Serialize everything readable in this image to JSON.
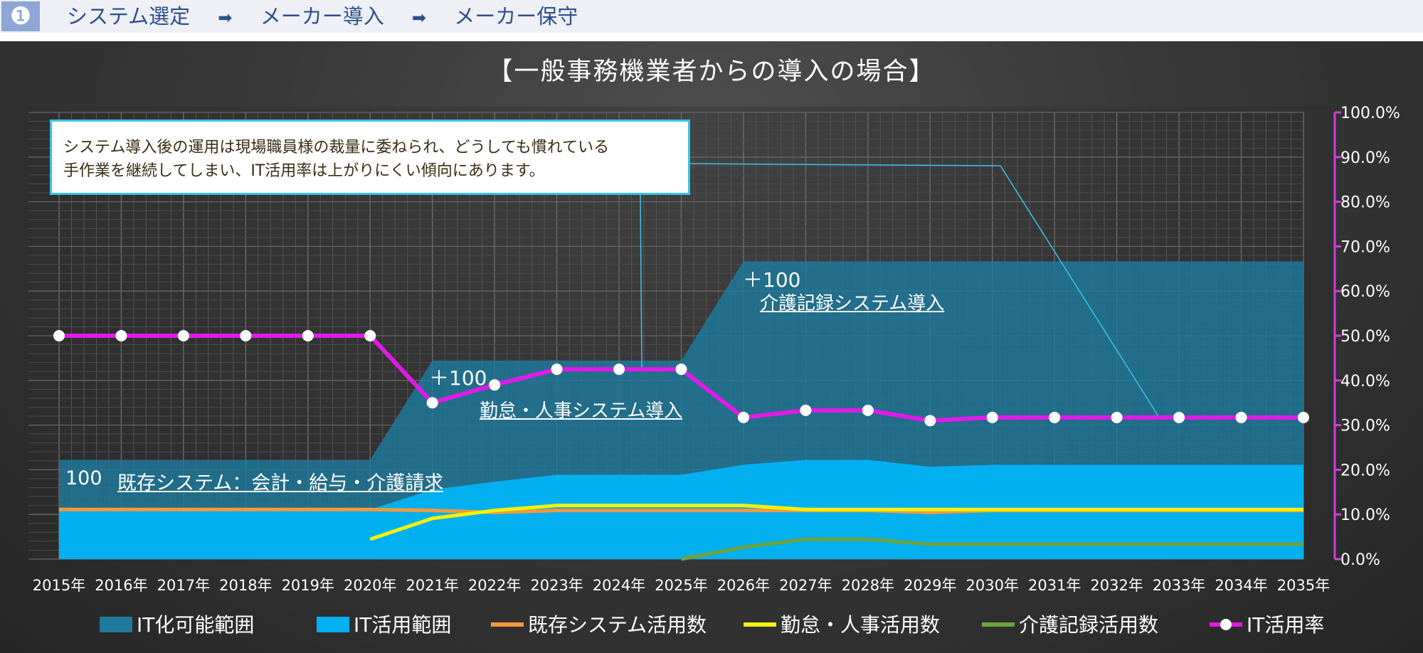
{
  "header": {
    "step_number": "❶",
    "steps": [
      "システム選定",
      "メーカー導入",
      "メーカー保守"
    ],
    "arrow": "➡"
  },
  "colors": {
    "it_possible_area": "#1f7a9c",
    "it_usage_area": "#03b0ef",
    "existing_line": "#f29a3a",
    "attendance_line": "#f3f20c",
    "care_line": "#6ea33e",
    "it_rate_line": "#e01ae8",
    "right_axis": "#d13fd7",
    "callout_border": "#39c4ec"
  },
  "callout": {
    "line1": "システム導入後の運用は現場職員様の裁量に委ねられ、どうしても慣れている",
    "line2": "手作業を継続してしまい、IT活用率は上がりにくい傾向にあります。"
  },
  "annotations": {
    "existing_count": "100",
    "existing_label": "既存システム：会計・給与・介護請求",
    "attendance_plus": "＋100",
    "attendance_label": "勤怠・人事システム導入",
    "care_plus": "＋100",
    "care_label": "介護記録システム導入"
  },
  "chart_data": {
    "type": "area",
    "title": "【一般事務機業者からの導入の場合】",
    "x": [
      "2015年",
      "2016年",
      "2017年",
      "2018年",
      "2019年",
      "2020年",
      "2021年",
      "2022年",
      "2023年",
      "2024年",
      "2025年",
      "2026年",
      "2027年",
      "2028年",
      "2029年",
      "2030年",
      "2031年",
      "2032年",
      "2033年",
      "2034年",
      "2035年"
    ],
    "y_right_ticks": [
      "0.0%",
      "10.0%",
      "20.0%",
      "30.0%",
      "40.0%",
      "50.0%",
      "60.0%",
      "70.0%",
      "80.0%",
      "90.0%",
      "100.0%"
    ],
    "y_right_range": [
      0,
      100
    ],
    "y_left_range": [
      0,
      450
    ],
    "grid": true,
    "legend_position": "bottom",
    "series": [
      {
        "name": "IT化可能範囲",
        "kind": "area",
        "values": [
          100,
          100,
          100,
          100,
          100,
          100,
          200,
          200,
          200,
          200,
          200,
          300,
          300,
          300,
          300,
          300,
          300,
          300,
          300,
          300,
          300
        ]
      },
      {
        "name": "IT活用範囲",
        "kind": "area",
        "values": [
          50,
          50,
          50,
          50,
          50,
          50,
          70,
          78,
          85,
          85,
          85,
          95,
          100,
          100,
          93,
          95,
          95,
          95,
          95,
          95,
          95
        ]
      },
      {
        "name": "既存システム活用数",
        "kind": "line",
        "values": [
          50,
          50,
          50,
          50,
          50,
          50,
          49,
          47,
          49,
          49,
          49,
          49,
          49,
          49,
          47,
          49,
          49,
          49,
          49,
          49,
          49
        ]
      },
      {
        "name": "勤怠・人事活用数",
        "kind": "line",
        "values": [
          null,
          null,
          null,
          null,
          null,
          20,
          41,
          49,
          54,
          54,
          54,
          54,
          50,
          50,
          50,
          50,
          50,
          50,
          50,
          50,
          50
        ]
      },
      {
        "name": "介護記録活用数",
        "kind": "line",
        "values": [
          null,
          null,
          null,
          null,
          null,
          null,
          null,
          null,
          null,
          null,
          0,
          12,
          20,
          20,
          15,
          15,
          15,
          15,
          15,
          15,
          15
        ]
      },
      {
        "name": "IT活用率",
        "kind": "line_marker",
        "axis": "right",
        "values": [
          50.0,
          50.0,
          50.0,
          50.0,
          50.0,
          50.0,
          35.0,
          39.0,
          42.5,
          42.5,
          42.5,
          31.7,
          33.3,
          33.3,
          31.0,
          31.7,
          31.7,
          31.7,
          31.7,
          31.7,
          31.7
        ]
      }
    ]
  }
}
